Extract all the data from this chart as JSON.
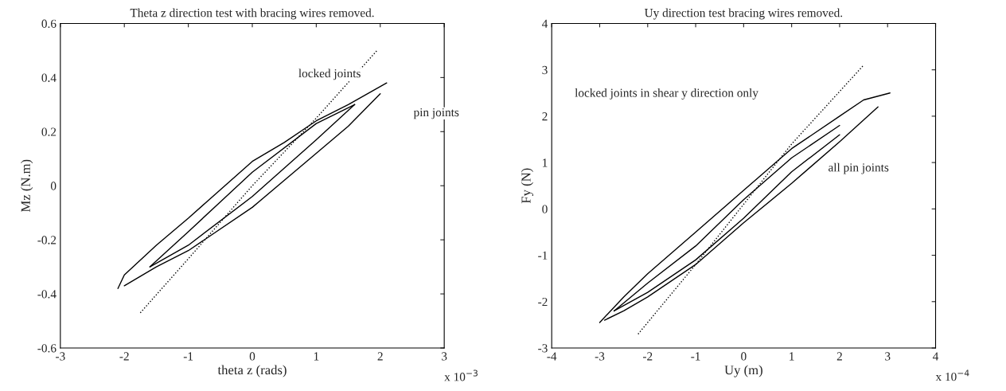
{
  "chart_data": [
    {
      "type": "line",
      "title": "Theta z direction test with bracing wires removed.",
      "xlabel": "theta z (rads)",
      "ylabel": "Mz (N.m)",
      "xlim": [
        -3,
        3
      ],
      "ylim": [
        -0.6,
        0.6
      ],
      "xticks": [
        -3,
        -2,
        -1,
        0,
        1,
        2,
        3
      ],
      "yticks": [
        -0.6,
        -0.4,
        -0.2,
        0,
        0.2,
        0.4,
        0.6
      ],
      "grid": false,
      "legend": false,
      "marker": "none",
      "series": [
        {
          "color": "#000000",
          "line_style": "dotted",
          "x": [
            -1.75,
            -1,
            0,
            1,
            1.95
          ],
          "values": [
            -0.47,
            -0.27,
            0.0,
            0.25,
            0.5
          ]
        },
        {
          "color": "#000000",
          "line_style": "solid",
          "x": [
            -2.1,
            -2.0,
            -1.5,
            -1.0,
            0.0,
            0.5,
            1.0,
            1.5,
            2.1
          ],
          "values": [
            -0.38,
            -0.33,
            -0.22,
            -0.12,
            0.09,
            0.16,
            0.24,
            0.3,
            0.38
          ]
        },
        {
          "color": "#000000",
          "line_style": "solid",
          "x": [
            -2.0,
            -1.5,
            -1.0,
            0.0,
            1.0,
            1.5,
            2.0
          ],
          "values": [
            -0.37,
            -0.3,
            -0.24,
            -0.08,
            0.12,
            0.22,
            0.34
          ]
        },
        {
          "color": "#000000",
          "line_style": "solid",
          "x": [
            -1.6,
            -1.0,
            0.0,
            1.0,
            1.6
          ],
          "values": [
            -0.3,
            -0.17,
            0.05,
            0.23,
            0.3
          ]
        },
        {
          "color": "#000000",
          "line_style": "solid",
          "x": [
            -1.6,
            -1.0,
            0.0,
            1.0,
            1.6
          ],
          "values": [
            -0.3,
            -0.22,
            -0.04,
            0.17,
            0.3
          ]
        }
      ],
      "annotations": [
        "locked joints",
        "pin joints",
        "x 10$^{−3}$"
      ]
    },
    {
      "type": "line",
      "title": "Uy direction test bracing wires removed.",
      "xlabel": "Uy (m)",
      "ylabel": "Fy (N)",
      "xlim": [
        -4,
        4
      ],
      "ylim": [
        -3,
        4
      ],
      "xticks": [
        -4,
        -3,
        -2,
        -1,
        0,
        1,
        2,
        3,
        4
      ],
      "yticks": [
        -3,
        -2,
        -1,
        0,
        1,
        2,
        3,
        4
      ],
      "grid": false,
      "legend": false,
      "marker": "none",
      "series": [
        {
          "color": "#000000",
          "line_style": "dotted",
          "x": [
            -2.2,
            -1,
            0,
            1,
            2.5
          ],
          "values": [
            -2.7,
            -1.2,
            0.1,
            1.4,
            3.1
          ]
        },
        {
          "color": "#000000",
          "line_style": "solid",
          "x": [
            -3.0,
            -2.5,
            -2.0,
            -1.0,
            0.0,
            1.0,
            2.0,
            2.5,
            3.05
          ],
          "values": [
            -2.45,
            -1.9,
            -1.4,
            -0.5,
            0.4,
            1.3,
            2.0,
            2.35,
            2.5
          ]
        },
        {
          "color": "#000000",
          "line_style": "solid",
          "x": [
            -2.9,
            -2.5,
            -2.0,
            -1.0,
            0.0,
            1.0,
            2.0,
            2.8
          ],
          "values": [
            -2.4,
            -2.2,
            -1.9,
            -1.2,
            -0.3,
            0.55,
            1.45,
            2.2
          ]
        },
        {
          "color": "#000000",
          "line_style": "solid",
          "x": [
            -2.7,
            -2.0,
            -1.0,
            0.0,
            1.0,
            2.0
          ],
          "values": [
            -2.2,
            -1.6,
            -0.8,
            0.2,
            1.1,
            1.8
          ]
        },
        {
          "color": "#000000",
          "line_style": "solid",
          "x": [
            -2.7,
            -2.0,
            -1.0,
            0.0,
            1.0,
            2.0
          ],
          "values": [
            -2.2,
            -1.8,
            -1.1,
            -0.2,
            0.8,
            1.6
          ]
        }
      ],
      "annotations": [
        "locked joints in shear y direction only",
        "all pin joints",
        "x 10$^{−4}$"
      ]
    }
  ]
}
